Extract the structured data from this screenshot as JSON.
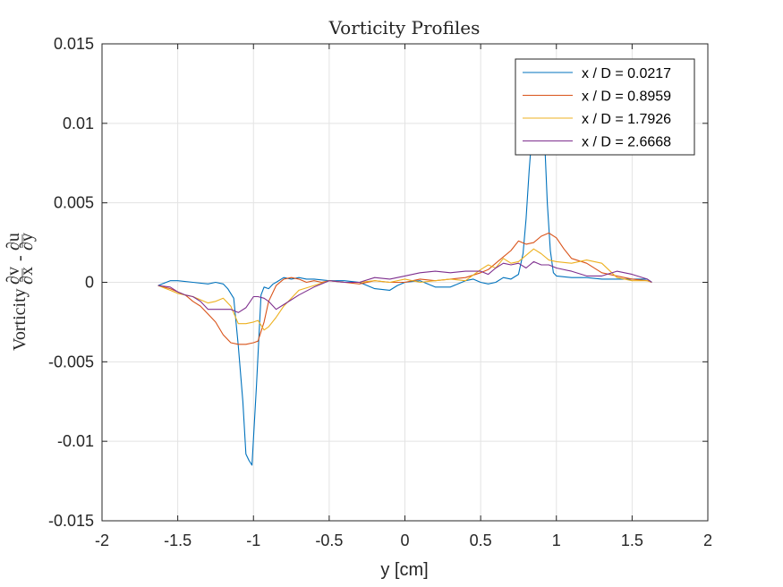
{
  "chart_data": {
    "type": "line",
    "title": "Vorticity Profiles",
    "xlabel": "y [cm]",
    "ylabel": {
      "prefix": "Vorticity ",
      "frac1_num": "∂v",
      "frac1_den": "∂x",
      "minus": " - ",
      "frac2_num": "∂u",
      "frac2_den": "∂y"
    },
    "xlim": [
      -2,
      2
    ],
    "ylim": [
      -0.015,
      0.015
    ],
    "grid": true,
    "legend_position": "top-right",
    "xticks": [
      -2,
      -1.5,
      -1,
      -0.5,
      0,
      0.5,
      1,
      1.5,
      2
    ],
    "xtick_labels": [
      "-2",
      "-1.5",
      "-1",
      "-0.5",
      "0",
      "0.5",
      "1",
      "1.5",
      "2"
    ],
    "yticks": [
      -0.015,
      -0.01,
      -0.005,
      0,
      0.005,
      0.01,
      0.015
    ],
    "ytick_labels": [
      "-0.015",
      "-0.01",
      "-0.005",
      "0",
      "0.005",
      "0.01",
      "0.015"
    ],
    "series": [
      {
        "name": "x / D = 0.0217",
        "color": "#0072BD",
        "x": [
          -1.63,
          -1.55,
          -1.5,
          -1.4,
          -1.3,
          -1.25,
          -1.2,
          -1.17,
          -1.13,
          -1.1,
          -1.07,
          -1.05,
          -1.03,
          -1.01,
          -0.98,
          -0.95,
          -0.93,
          -0.9,
          -0.87,
          -0.85,
          -0.8,
          -0.75,
          -0.7,
          -0.65,
          -0.6,
          -0.5,
          -0.4,
          -0.3,
          -0.2,
          -0.1,
          -0.05,
          0,
          0.1,
          0.2,
          0.3,
          0.4,
          0.45,
          0.5,
          0.55,
          0.6,
          0.65,
          0.7,
          0.75,
          0.78,
          0.8,
          0.82,
          0.84,
          0.86,
          0.88,
          0.9,
          0.92,
          0.94,
          0.96,
          0.98,
          1.0,
          1.1,
          1.2,
          1.3,
          1.4,
          1.5,
          1.6,
          1.63
        ],
        "y": [
          -0.0002,
          0.0001,
          0.0001,
          0.0,
          -0.0001,
          0.0,
          -0.0001,
          -0.0004,
          -0.001,
          -0.004,
          -0.0075,
          -0.0108,
          -0.0112,
          -0.0115,
          -0.0065,
          -0.0008,
          -0.0003,
          -0.0004,
          -0.0001,
          0.0,
          0.0003,
          0.0002,
          0.0003,
          0.0002,
          0.0002,
          0.0001,
          0.0001,
          0.0,
          -0.0004,
          -0.0005,
          -0.0002,
          0.0,
          0.0001,
          -0.0003,
          -0.0003,
          0.0001,
          0.0002,
          0.0,
          -0.0001,
          0.0,
          0.0003,
          0.0002,
          0.0005,
          0.0018,
          0.004,
          0.007,
          0.0095,
          0.0108,
          0.0113,
          0.0112,
          0.0095,
          0.005,
          0.002,
          0.0006,
          0.0004,
          0.0003,
          0.0003,
          0.0002,
          0.0002,
          0.0002,
          0.0002,
          0.0
        ]
      },
      {
        "name": "x / D = 0.8959",
        "color": "#D95319",
        "x": [
          -1.63,
          -1.55,
          -1.5,
          -1.45,
          -1.4,
          -1.35,
          -1.3,
          -1.25,
          -1.2,
          -1.15,
          -1.1,
          -1.05,
          -1.0,
          -0.97,
          -0.93,
          -0.9,
          -0.85,
          -0.8,
          -0.75,
          -0.7,
          -0.65,
          -0.6,
          -0.55,
          -0.5,
          -0.4,
          -0.3,
          -0.2,
          -0.1,
          0,
          0.1,
          0.2,
          0.3,
          0.4,
          0.5,
          0.55,
          0.6,
          0.65,
          0.7,
          0.75,
          0.8,
          0.85,
          0.9,
          0.95,
          1.0,
          1.05,
          1.1,
          1.2,
          1.3,
          1.4,
          1.5,
          1.6,
          1.63
        ],
        "y": [
          -0.0002,
          -0.0004,
          -0.0006,
          -0.0008,
          -0.0012,
          -0.0015,
          -0.002,
          -0.0025,
          -0.0033,
          -0.0038,
          -0.0039,
          -0.0039,
          -0.0038,
          -0.0037,
          -0.0025,
          -0.0012,
          -0.0002,
          0.0002,
          0.0003,
          0.0002,
          0.0,
          0.0001,
          0.0,
          0.0001,
          0.0,
          -0.0001,
          0.0001,
          0.0,
          0.0,
          0.0002,
          0.0001,
          0.0002,
          0.0003,
          0.0006,
          0.0008,
          0.0012,
          0.0016,
          0.002,
          0.0026,
          0.0024,
          0.0025,
          0.0029,
          0.0031,
          0.0028,
          0.0021,
          0.0015,
          0.0012,
          0.0006,
          0.0004,
          0.0002,
          0.0001,
          0.0
        ]
      },
      {
        "name": "x / D = 1.7926",
        "color": "#EDB120",
        "x": [
          -1.63,
          -1.55,
          -1.5,
          -1.45,
          -1.4,
          -1.35,
          -1.3,
          -1.25,
          -1.2,
          -1.15,
          -1.1,
          -1.05,
          -1.0,
          -0.97,
          -0.93,
          -0.9,
          -0.85,
          -0.8,
          -0.75,
          -0.7,
          -0.6,
          -0.5,
          -0.4,
          -0.3,
          -0.2,
          -0.1,
          0,
          0.1,
          0.2,
          0.3,
          0.4,
          0.5,
          0.55,
          0.6,
          0.65,
          0.7,
          0.75,
          0.8,
          0.85,
          0.9,
          0.95,
          1.0,
          1.1,
          1.2,
          1.3,
          1.4,
          1.5,
          1.6,
          1.63
        ],
        "y": [
          -0.0002,
          -0.0005,
          -0.0007,
          -0.0008,
          -0.0009,
          -0.0011,
          -0.0013,
          -0.0012,
          -0.001,
          -0.0015,
          -0.0026,
          -0.0026,
          -0.0025,
          -0.0024,
          -0.003,
          -0.0028,
          -0.0022,
          -0.0015,
          -0.001,
          -0.0005,
          -0.0002,
          0.0001,
          0.0,
          0.0,
          0.0001,
          0.0,
          0.0002,
          0.0,
          0.0001,
          0.0002,
          0.0001,
          0.0008,
          0.0011,
          0.0009,
          0.0015,
          0.0012,
          0.0013,
          0.0017,
          0.0021,
          0.0018,
          0.0014,
          0.0013,
          0.0012,
          0.0014,
          0.0012,
          0.0003,
          0.0001,
          0.0001,
          0.0
        ]
      },
      {
        "name": "x / D = 2.6668",
        "color": "#7E2F8E",
        "x": [
          -1.63,
          -1.55,
          -1.5,
          -1.45,
          -1.4,
          -1.35,
          -1.3,
          -1.25,
          -1.2,
          -1.15,
          -1.1,
          -1.05,
          -1.0,
          -0.97,
          -0.93,
          -0.9,
          -0.85,
          -0.8,
          -0.75,
          -0.7,
          -0.6,
          -0.5,
          -0.4,
          -0.3,
          -0.2,
          -0.1,
          0,
          0.1,
          0.2,
          0.3,
          0.4,
          0.5,
          0.55,
          0.6,
          0.65,
          0.7,
          0.75,
          0.8,
          0.85,
          0.9,
          0.95,
          1.0,
          1.1,
          1.2,
          1.3,
          1.4,
          1.5,
          1.6,
          1.63
        ],
        "y": [
          -0.0002,
          -0.0003,
          -0.0006,
          -0.0008,
          -0.0009,
          -0.0012,
          -0.0017,
          -0.0017,
          -0.0017,
          -0.0017,
          -0.0019,
          -0.0016,
          -0.0009,
          -0.0009,
          -0.001,
          -0.0012,
          -0.0017,
          -0.0014,
          -0.0011,
          -0.0008,
          -0.0003,
          0.0001,
          0.0,
          0.0,
          0.0003,
          0.0002,
          0.0004,
          0.0006,
          0.0007,
          0.0006,
          0.0007,
          0.0007,
          0.0005,
          0.0009,
          0.0012,
          0.0011,
          0.0012,
          0.0009,
          0.0013,
          0.0011,
          0.0011,
          0.0009,
          0.0007,
          0.0004,
          0.0004,
          0.0007,
          0.0005,
          0.0002,
          0.0
        ]
      }
    ]
  }
}
